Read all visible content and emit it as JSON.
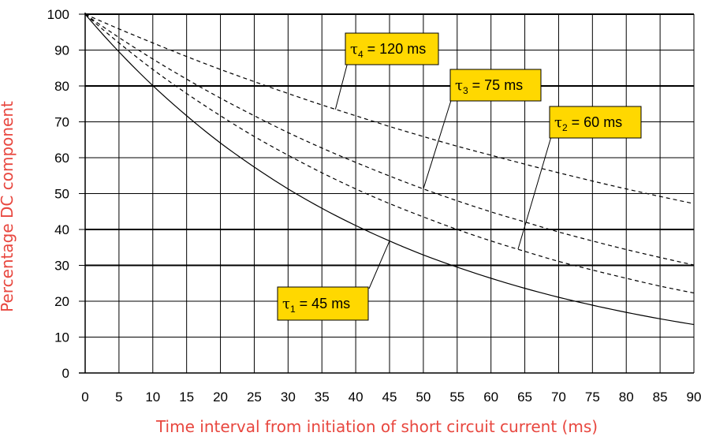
{
  "chart_data": {
    "type": "line",
    "xlabel": "Time interval from initiation of short circuit current (ms)",
    "ylabel": "Percentage DC component",
    "xlim": [
      0,
      90
    ],
    "ylim": [
      0,
      100
    ],
    "x_ticks": [
      "0",
      "5",
      "10",
      "15",
      "20",
      "25",
      "30",
      "35",
      "40",
      "45",
      "50",
      "55",
      "60",
      "65",
      "70",
      "75",
      "80",
      "85",
      "90"
    ],
    "y_ticks": [
      "0",
      "10",
      "20",
      "30",
      "40",
      "50",
      "60",
      "70",
      "80",
      "90",
      "100"
    ],
    "grid": true,
    "x": [
      0,
      5,
      10,
      15,
      20,
      25,
      30,
      35,
      40,
      45,
      50,
      55,
      60,
      65,
      70,
      75,
      80,
      85,
      90
    ],
    "series": [
      {
        "tau": "1",
        "label": "= 45 ms",
        "style": "solid",
        "values": [
          100,
          89.5,
          80.1,
          71.7,
          64.1,
          57.4,
          51.3,
          45.9,
          41.1,
          36.8,
          32.9,
          29.5,
          26.4,
          23.6,
          21.1,
          18.9,
          16.9,
          15.1,
          13.5
        ]
      },
      {
        "tau": "2",
        "label": "= 60 ms",
        "style": "dashed",
        "values": [
          100,
          92.0,
          84.6,
          77.9,
          71.7,
          65.9,
          60.7,
          55.8,
          51.3,
          47.2,
          43.5,
          40.0,
          36.8,
          33.9,
          31.1,
          28.7,
          26.4,
          24.2,
          22.3
        ]
      },
      {
        "tau": "3",
        "label": "= 75 ms",
        "style": "dashed",
        "values": [
          100,
          93.5,
          87.5,
          81.9,
          76.6,
          71.7,
          67.0,
          62.7,
          58.7,
          54.9,
          51.3,
          48.0,
          44.9,
          42.1,
          39.3,
          36.8,
          34.4,
          32.2,
          30.1
        ]
      },
      {
        "tau": "4",
        "label": "= 120 ms",
        "style": "dashed",
        "values": [
          100,
          95.9,
          92.0,
          88.2,
          84.6,
          81.2,
          77.9,
          74.7,
          71.7,
          68.7,
          65.9,
          63.2,
          60.7,
          58.2,
          55.8,
          53.5,
          51.3,
          49.2,
          47.2
        ]
      }
    ],
    "annotations": [
      {
        "series": 0,
        "greek": "τ",
        "sub": "1",
        "text": " = 45 ms",
        "point_x": 45,
        "point_y": 36.8
      },
      {
        "series": 1,
        "greek": "τ",
        "sub": "2",
        "text": " = 60 ms",
        "point_x": 64,
        "point_y": 34.5
      },
      {
        "series": 2,
        "greek": "τ",
        "sub": "3",
        "text": " = 75 ms",
        "point_x": 50,
        "point_y": 51.3
      },
      {
        "series": 3,
        "greek": "τ",
        "sub": "4",
        "text": " = 120 ms",
        "point_x": 37,
        "point_y": 73.5
      }
    ],
    "colors": {
      "line": "#000000",
      "label_fill": "#ffd800",
      "axis_title": "#e8473f"
    }
  }
}
